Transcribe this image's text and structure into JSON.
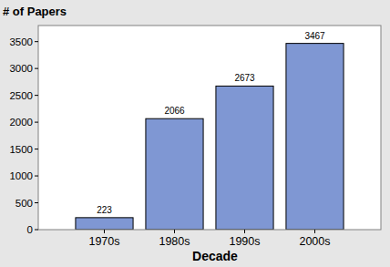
{
  "chart_data": {
    "type": "bar",
    "y_label": "# of Papers",
    "x_label": "Decade",
    "categories": [
      "1970s",
      "1980s",
      "1990s",
      "2000s"
    ],
    "values": [
      223,
      2066,
      2673,
      3467
    ],
    "color": "#7f97d3",
    "ylim": [
      0,
      3800
    ],
    "yticks": [
      0,
      500,
      1000,
      1500,
      2000,
      2500,
      3000,
      3500
    ],
    "grid": false,
    "data_labels": true
  }
}
